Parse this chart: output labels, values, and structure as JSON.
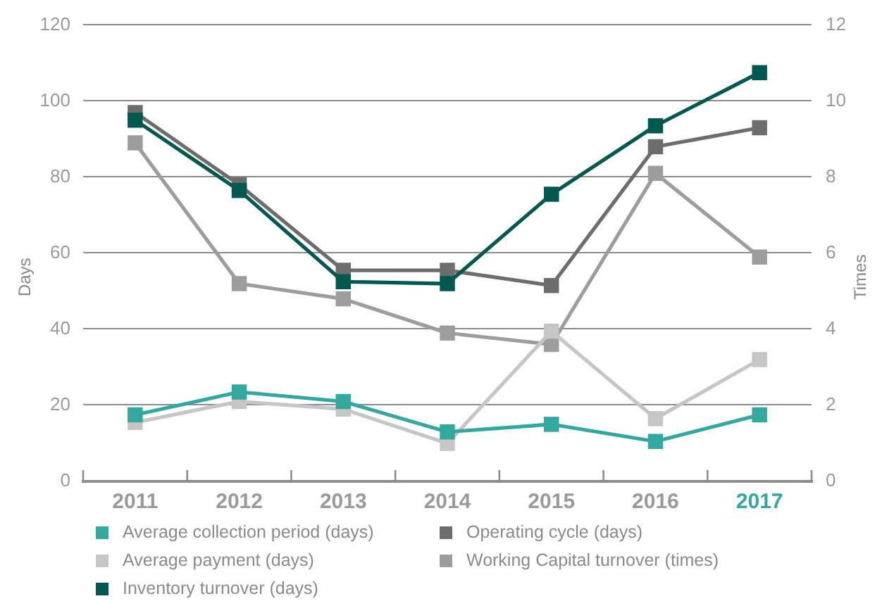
{
  "chart_data": {
    "type": "line",
    "ylabel": "Days",
    "y2label": "Times",
    "categories": [
      "2011",
      "2012",
      "2013",
      "2014",
      "2015",
      "2016",
      "2017"
    ],
    "series": [
      {
        "name": "Average collection period (days)",
        "color": "#33a89e",
        "values": [
          17.5,
          23.5,
          21,
          13,
          15,
          10.5,
          17.5
        ]
      },
      {
        "name": "Average payment (days)",
        "color": "#c6c6c6",
        "values": [
          15.5,
          21,
          19,
          10,
          39.5,
          16.5,
          32
        ]
      },
      {
        "name": "Inventory turnover (days)",
        "color": "#005850",
        "values": [
          95,
          76.5,
          52.5,
          52,
          75.5,
          93.5,
          107.5
        ]
      },
      {
        "name": "Operating cycle (days)",
        "color": "#6d6d6d",
        "values": [
          97,
          78,
          55.5,
          55.5,
          51.5,
          88,
          93
        ]
      },
      {
        "name": "Working Capital turnover (times)",
        "color": "#9d9d9d",
        "axis": "y2",
        "values": [
          8.9,
          5.2,
          4.8,
          3.9,
          3.6,
          8.1,
          5.9
        ]
      }
    ],
    "ylim": [
      0,
      120
    ],
    "yticks": [
      0,
      20,
      40,
      60,
      80,
      100,
      120
    ],
    "y2lim": [
      0,
      12
    ],
    "y2ticks": [
      0,
      2,
      4,
      6,
      8,
      10,
      12
    ],
    "grid": "y",
    "legend": "bottom",
    "marker": "square",
    "line_style": "solid"
  }
}
